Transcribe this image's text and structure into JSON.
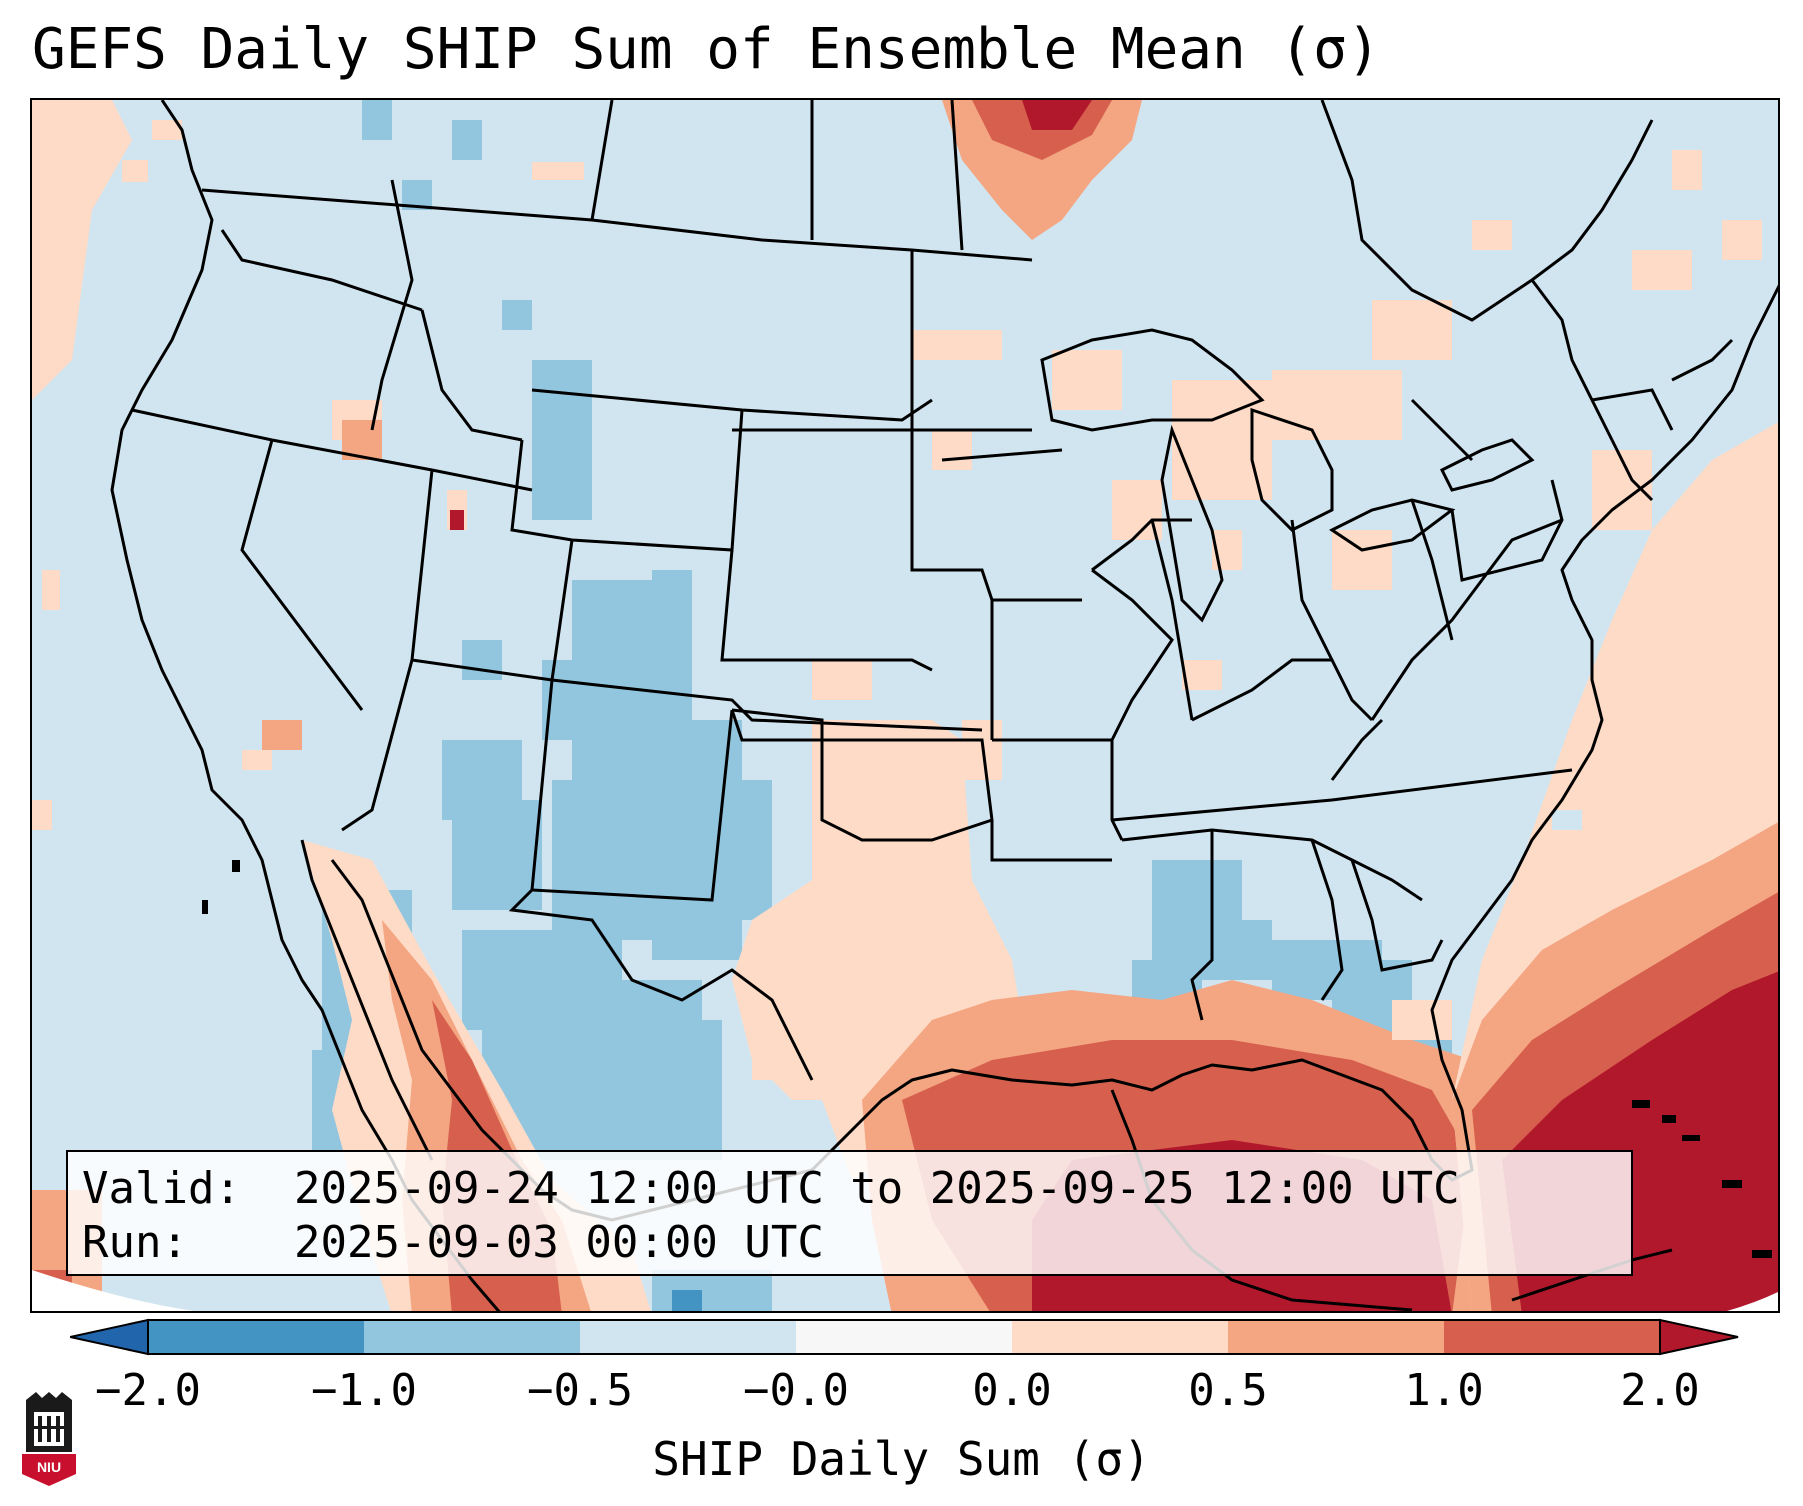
{
  "title": "GEFS Daily SHIP Sum of Ensemble Mean (σ)",
  "info": {
    "valid_label": "Valid:",
    "valid_value": "2025-09-24 12:00 UTC to 2025-09-25 12:00 UTC",
    "run_label": "Run:",
    "run_value": "2025-09-03 00:00 UTC"
  },
  "colorbar": {
    "label": "SHIP Daily Sum (σ)",
    "ticks": [
      "−2.0",
      "−1.0",
      "−0.5",
      "−0.0",
      "0.0",
      "0.5",
      "1.0",
      "2.0"
    ],
    "bins": [
      {
        "range": "< -2.0",
        "color": "#2166ac"
      },
      {
        "range": "-2.0 to -1.0",
        "color": "#4393c3"
      },
      {
        "range": "-1.0 to -0.5",
        "color": "#92c5de"
      },
      {
        "range": "-0.5 to -0.0",
        "color": "#d1e5f0"
      },
      {
        "range": "-0.0 to 0.0",
        "color": "#f7f7f7"
      },
      {
        "range": "0.0 to 0.5",
        "color": "#fddbc7"
      },
      {
        "range": "0.5 to 1.0",
        "color": "#f4a582"
      },
      {
        "range": "1.0 to 2.0",
        "color": "#d6604d"
      },
      {
        "range": "> 2.0",
        "color": "#b2182b"
      }
    ]
  },
  "logo": {
    "text": "NIU"
  },
  "colors": {
    "background": "#d1e5f0",
    "strong_negative": "#92c5de",
    "weak_positive": "#fddbc7",
    "moderate_positive": "#f4a582",
    "strong_positive": "#d6604d",
    "extreme_positive": "#b2182b"
  }
}
